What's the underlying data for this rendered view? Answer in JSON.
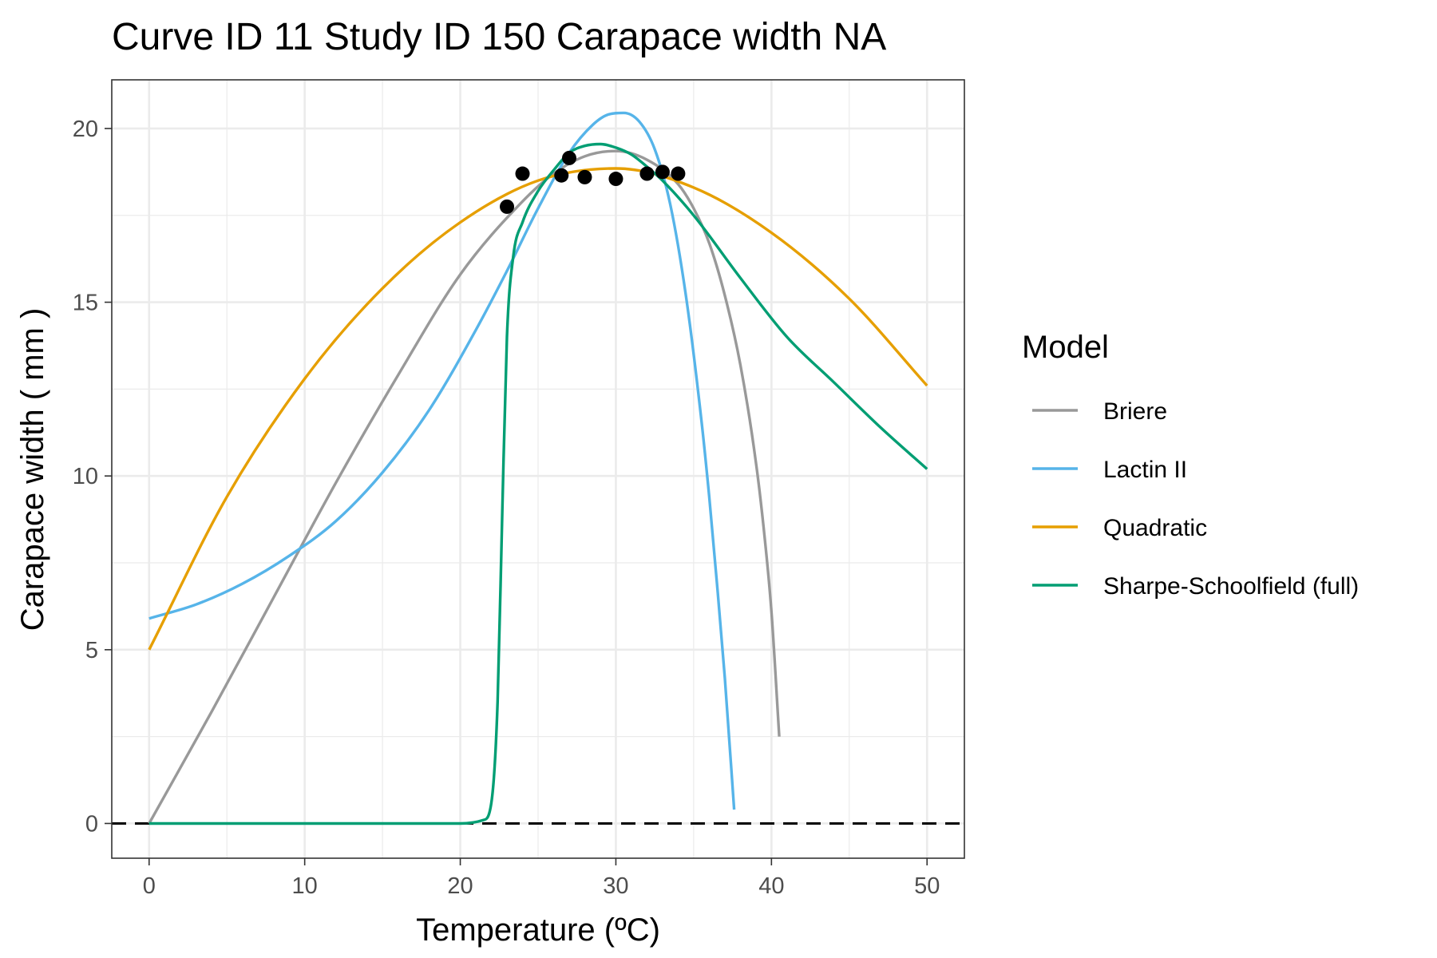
{
  "chart_data": {
    "type": "line",
    "title": "Curve ID 11 Study ID 150 Carapace width NA",
    "xlabel": "Temperature (ºC)",
    "ylabel": "Carapace width ( mm )",
    "xlim": [
      -2.4,
      52.4
    ],
    "ylim": [
      -1.0,
      21.4
    ],
    "xticks": [
      0,
      10,
      20,
      30,
      40,
      50
    ],
    "xtick_labels": [
      "0",
      "10",
      "20",
      "30",
      "40",
      "50"
    ],
    "yticks": [
      0,
      5,
      10,
      15,
      20
    ],
    "ytick_labels": [
      "0",
      "5",
      "10",
      "15",
      "20"
    ],
    "grid": true,
    "reference_line": {
      "y": 0,
      "style": "dashed"
    },
    "legend": {
      "title": "Model",
      "position": "right"
    },
    "points": {
      "x": [
        23,
        24,
        26.5,
        27,
        28,
        30,
        32,
        33,
        34
      ],
      "y": [
        17.75,
        18.7,
        18.65,
        19.15,
        18.6,
        18.55,
        18.7,
        18.75,
        18.7
      ]
    },
    "series": [
      {
        "name": "Briere",
        "color": "#999999",
        "x": [
          0,
          4,
          8,
          12,
          16,
          20,
          24,
          26,
          28,
          30,
          32,
          34,
          35,
          36,
          37,
          38,
          39,
          39.5,
          40,
          40.5
        ],
        "y": [
          0,
          3.2,
          6.5,
          9.8,
          12.9,
          15.8,
          17.9,
          18.7,
          19.2,
          19.35,
          19.1,
          18.4,
          17.7,
          16.7,
          15.2,
          13.2,
          10.4,
          8.5,
          6.1,
          2.5
        ]
      },
      {
        "name": "Lactin II",
        "color": "#56B4E9",
        "x": [
          0,
          3,
          6,
          9,
          12,
          15,
          18,
          21,
          23,
          25,
          27,
          28.5,
          29.5,
          30.5,
          31.5,
          32.5,
          33.5,
          34.5,
          35.5,
          36,
          36.5,
          37,
          37.6
        ],
        "y": [
          5.9,
          6.3,
          6.9,
          7.7,
          8.7,
          10.1,
          11.9,
          14.2,
          15.9,
          17.7,
          19.3,
          20.1,
          20.4,
          20.45,
          20.2,
          19.4,
          17.8,
          15.2,
          11.6,
          9.4,
          6.9,
          4.2,
          0.4
        ]
      },
      {
        "name": "Quadratic",
        "color": "#E69F00",
        "x": [
          0,
          5,
          10,
          15,
          20,
          25,
          30,
          35,
          40,
          45,
          50
        ],
        "y": [
          5.0,
          9.4,
          12.8,
          15.4,
          17.3,
          18.5,
          18.85,
          18.3,
          17.0,
          15.1,
          12.6
        ]
      },
      {
        "name": "Sharpe-Schoolfield (full)",
        "color": "#009E73",
        "x": [
          0,
          20,
          21.5,
          22,
          22.4,
          22.7,
          23,
          23.4,
          24,
          25,
          26,
          27,
          28,
          29,
          30,
          31,
          32,
          33,
          35,
          38,
          41,
          44,
          47,
          50
        ],
        "y": [
          0,
          0,
          0.1,
          0.6,
          3.5,
          9.0,
          14.0,
          16.3,
          17.3,
          18.2,
          18.8,
          19.3,
          19.5,
          19.55,
          19.45,
          19.25,
          18.9,
          18.5,
          17.5,
          15.7,
          14.0,
          12.7,
          11.4,
          10.2
        ]
      }
    ]
  }
}
